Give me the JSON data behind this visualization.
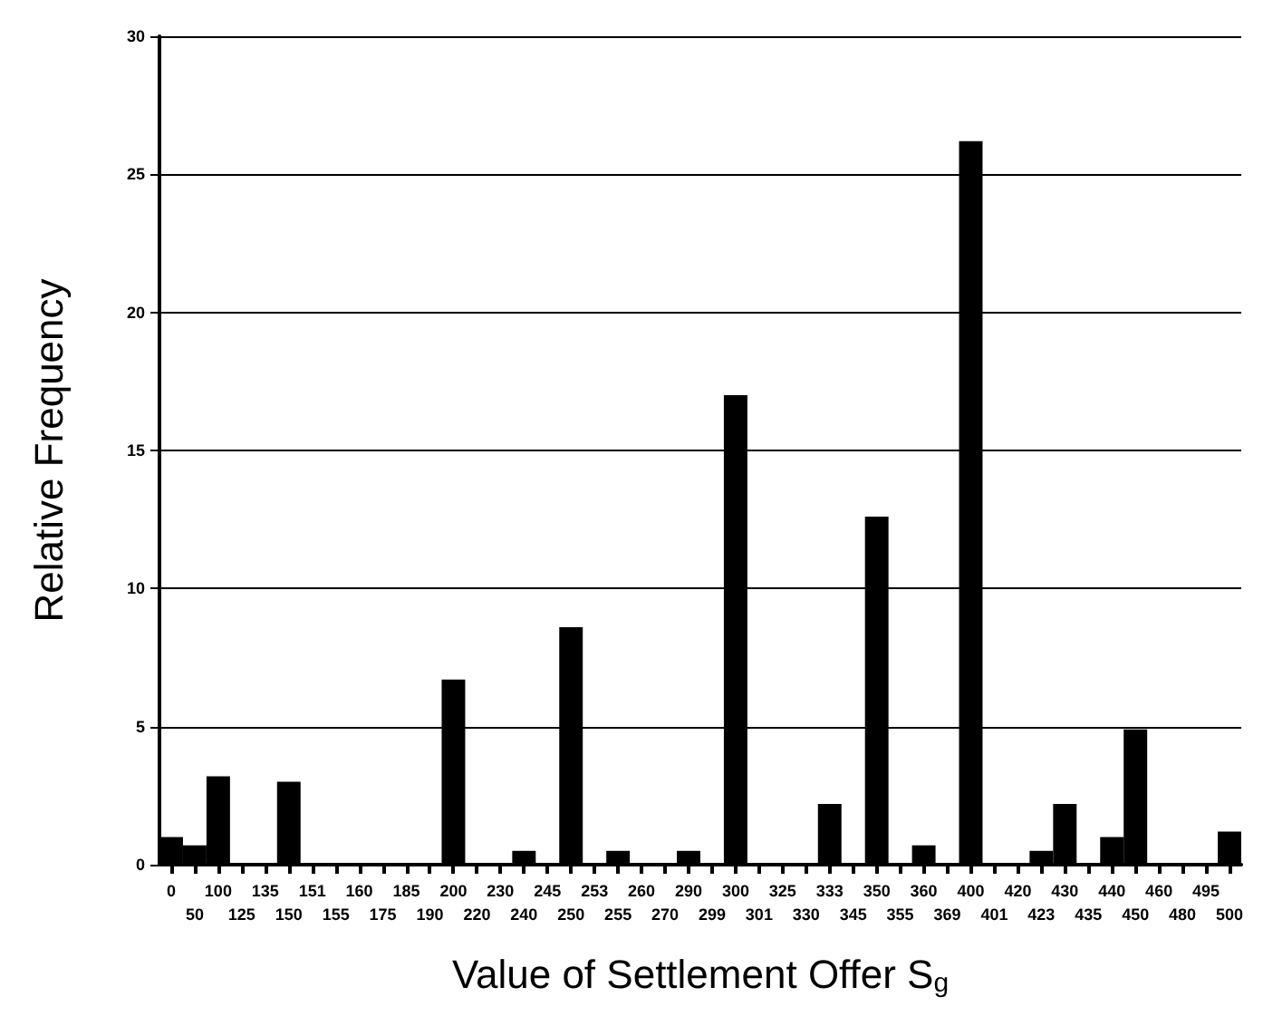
{
  "chart_data": {
    "type": "bar",
    "xlabel": "Value of Settlement Offer S$_{g}$",
    "ylabel": "Relative Frequency",
    "categories": [
      "0",
      "50",
      "100",
      "125",
      "135",
      "150",
      "151",
      "155",
      "160",
      "175",
      "185",
      "190",
      "200",
      "220",
      "230",
      "240",
      "245",
      "250",
      "253",
      "255",
      "260",
      "270",
      "290",
      "299",
      "300",
      "301",
      "325",
      "330",
      "333",
      "345",
      "350",
      "355",
      "360",
      "369",
      "400",
      "401",
      "420",
      "423",
      "430",
      "435",
      "440",
      "450",
      "460",
      "480",
      "495",
      "500"
    ],
    "values": [
      1.0,
      0.7,
      3.2,
      0,
      0,
      3.0,
      0,
      0,
      0,
      0,
      0,
      0,
      6.7,
      0,
      0,
      0.5,
      0,
      8.6,
      0,
      0.5,
      0,
      0,
      0.5,
      0,
      17.0,
      0,
      0,
      0,
      2.2,
      0,
      12.6,
      0,
      0.7,
      0,
      26.2,
      0,
      0,
      0.5,
      2.2,
      0,
      1.0,
      4.9,
      0,
      0,
      0,
      1.2
    ],
    "color": "#000000",
    "ylim": [
      0,
      30
    ],
    "yticks": [
      0,
      5,
      10,
      15,
      20,
      25,
      30
    ],
    "grid": "y"
  }
}
